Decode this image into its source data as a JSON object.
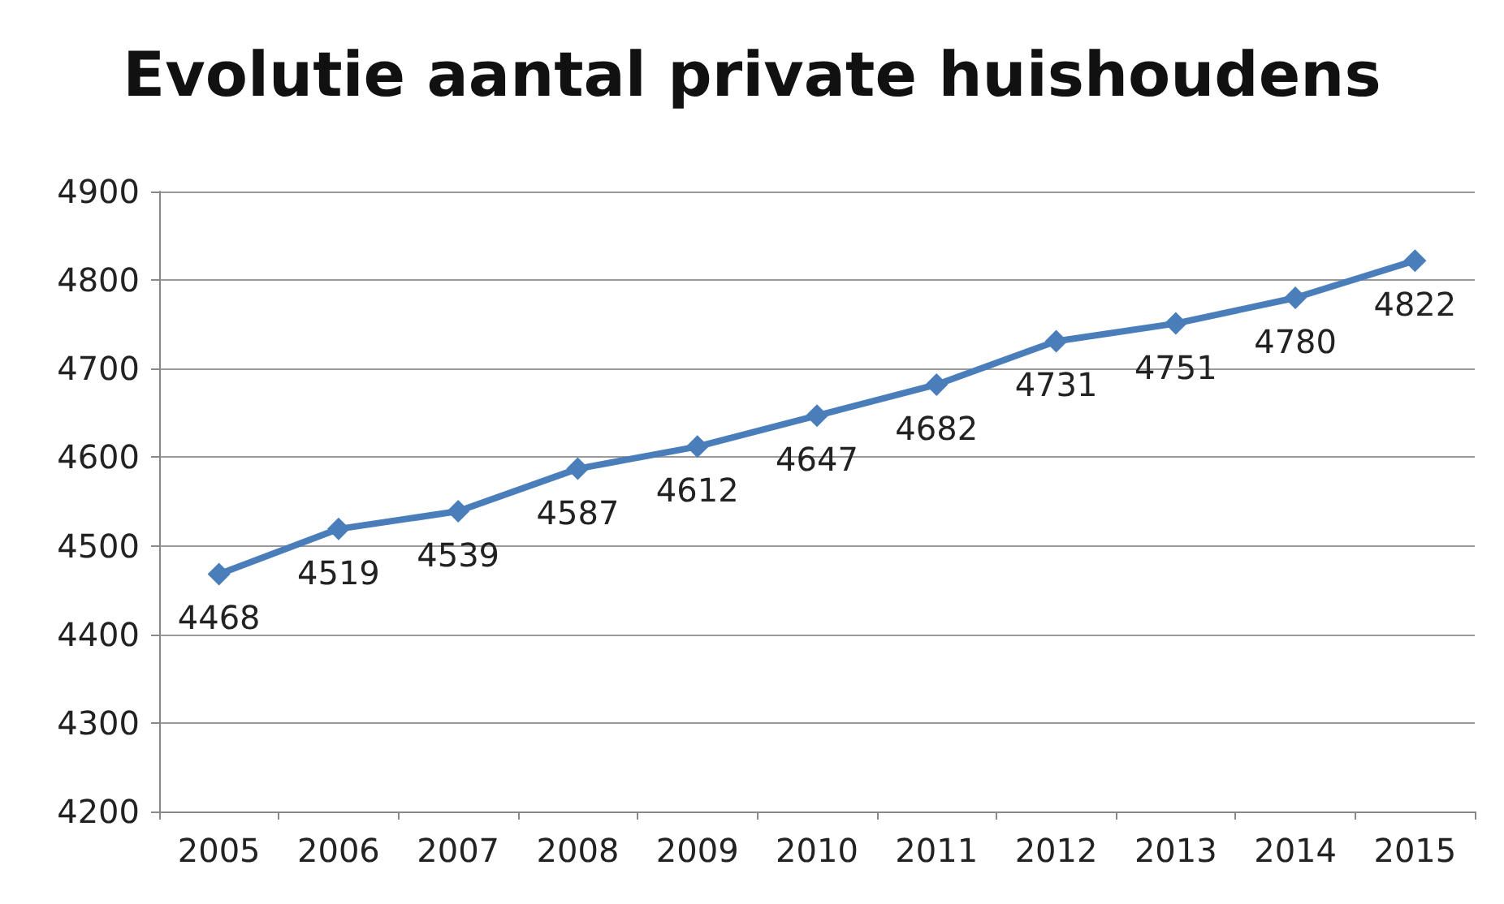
{
  "chart_data": {
    "type": "line",
    "title": "Evolutie aantal private huishoudens",
    "categories": [
      "2005",
      "2006",
      "2007",
      "2008",
      "2009",
      "2010",
      "2011",
      "2012",
      "2013",
      "2014",
      "2015"
    ],
    "series": [
      {
        "color": "#4a7ebb",
        "values": [
          4468,
          4519,
          4539,
          4587,
          4612,
          4647,
          4682,
          4731,
          4751,
          4780,
          4822
        ]
      }
    ],
    "ylim": [
      4200,
      4900
    ],
    "yticks": [
      4200,
      4300,
      4400,
      4500,
      4600,
      4700,
      4800,
      4900
    ],
    "grid": "y",
    "marker": "diamond",
    "line_style": "solid",
    "data_labels": true
  }
}
